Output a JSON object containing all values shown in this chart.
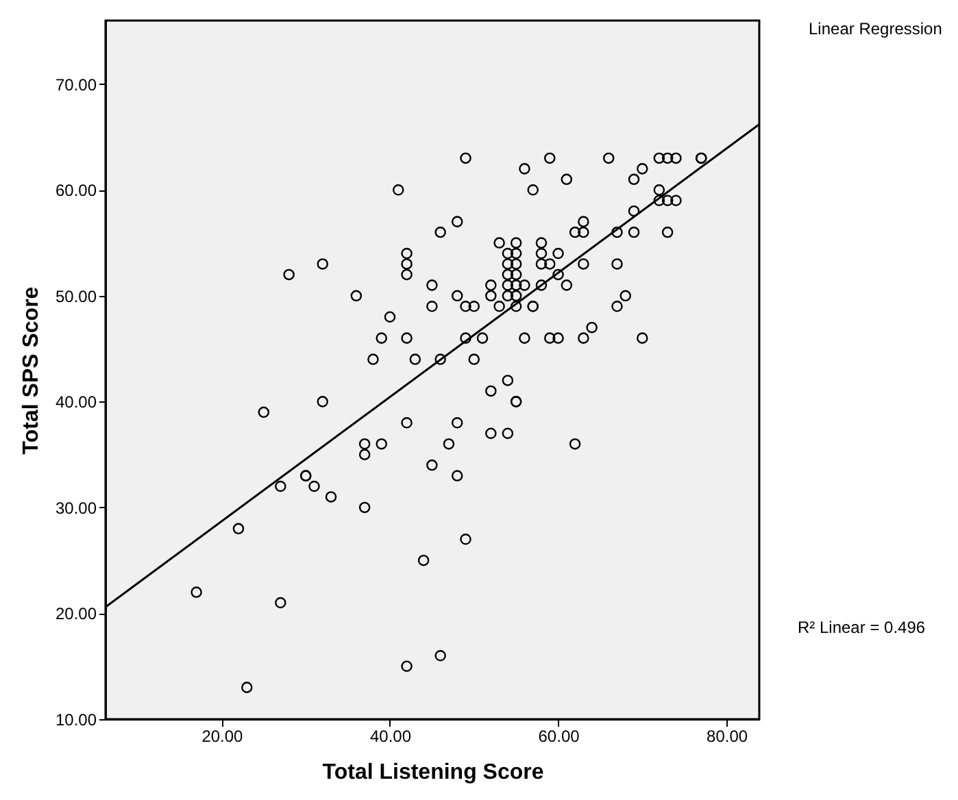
{
  "chart_data": {
    "type": "scatter",
    "xlabel": "Total Listening Score",
    "ylabel": "Total SPS Score",
    "annotations": [
      "Linear Regression",
      "R² Linear = 0.496"
    ],
    "xlim": [
      6.2,
      83.9
    ],
    "ylim": [
      10,
      76
    ],
    "xticks": [
      {
        "value": 20,
        "label": "20.00"
      },
      {
        "value": 40,
        "label": "40.00"
      },
      {
        "value": 60,
        "label": "60.00"
      },
      {
        "value": 80,
        "label": "80.00"
      }
    ],
    "yticks": [
      {
        "value": 10,
        "label": "10.00"
      },
      {
        "value": 20,
        "label": "20.00"
      },
      {
        "value": 30,
        "label": "30.00"
      },
      {
        "value": 40,
        "label": "40.00"
      },
      {
        "value": 50,
        "label": "50.00"
      },
      {
        "value": 60,
        "label": "60.00"
      },
      {
        "value": 70,
        "label": "70.00"
      }
    ],
    "grid": false,
    "series": [
      {
        "marker": "circle",
        "color": "#000000",
        "x": [
          17,
          23,
          22,
          25,
          27,
          27,
          28,
          30,
          30,
          31,
          32,
          32,
          33,
          36,
          37,
          37,
          37,
          38,
          39,
          39,
          40,
          41,
          42,
          42,
          42,
          42,
          42,
          42,
          43,
          44,
          45,
          45,
          45,
          46,
          46,
          46,
          47,
          48,
          48,
          48,
          48,
          49,
          49,
          49,
          49,
          50,
          50,
          51,
          52,
          52,
          52,
          52,
          53,
          53,
          54,
          54,
          54,
          54,
          54,
          54,
          54,
          55,
          55,
          55,
          55,
          55,
          55,
          55,
          55,
          55,
          56,
          56,
          56,
          57,
          57,
          57,
          58,
          58,
          58,
          58,
          59,
          59,
          59,
          60,
          60,
          60,
          61,
          61,
          62,
          62,
          63,
          63,
          63,
          63,
          64,
          66,
          67,
          67,
          67,
          68,
          69,
          69,
          69,
          70,
          70,
          72,
          72,
          72,
          73,
          73,
          73,
          74,
          74,
          77,
          77
        ],
        "values": [
          22,
          13,
          28,
          39,
          32,
          21,
          52,
          33,
          33,
          32,
          53,
          40,
          31,
          50,
          36,
          35,
          30,
          44,
          46,
          36,
          48,
          60,
          54,
          53,
          52,
          46,
          38,
          15,
          44,
          25,
          51,
          49,
          34,
          56,
          44,
          16,
          36,
          57,
          50,
          38,
          33,
          63,
          49,
          46,
          27,
          49,
          44,
          46,
          51,
          50,
          41,
          37,
          55,
          49,
          54,
          53,
          52,
          51,
          50,
          42,
          37,
          55,
          54,
          53,
          52,
          51,
          50,
          49,
          40,
          40,
          62,
          51,
          46,
          60,
          49,
          49,
          55,
          54,
          53,
          51,
          63,
          53,
          46,
          54,
          52,
          46,
          61,
          51,
          56,
          36,
          57,
          56,
          53,
          46,
          47,
          63,
          56,
          53,
          49,
          50,
          61,
          58,
          56,
          62,
          46,
          63,
          60,
          59,
          63,
          59,
          56,
          63,
          59,
          63,
          63
        ]
      },
      {
        "type": "line",
        "line_style": "solid",
        "color": "#000000",
        "x": [
          6.2,
          83.9
        ],
        "values": [
          20.6,
          66.2
        ]
      }
    ]
  }
}
